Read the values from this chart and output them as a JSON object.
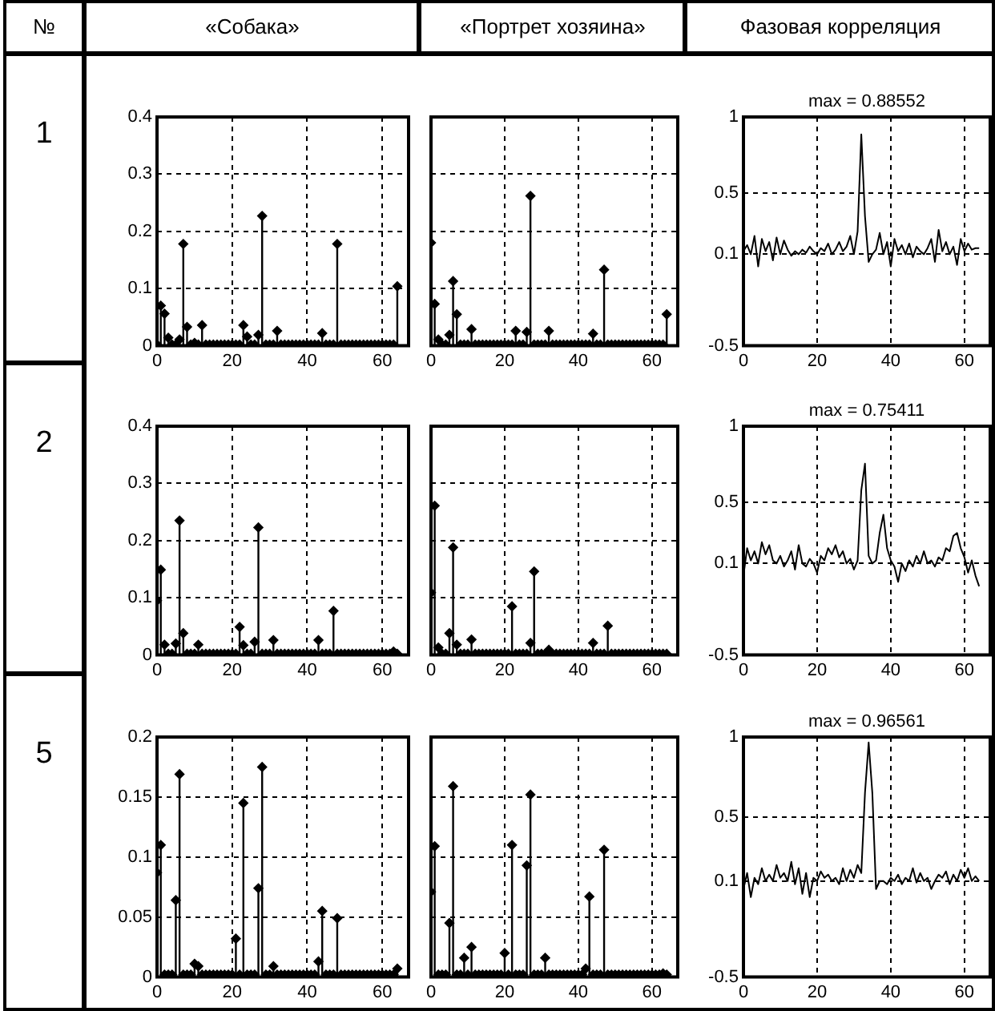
{
  "chart_data": [
    {
      "type": "other",
      "title": "№",
      "annotations": [
        "1",
        "2",
        "5"
      ]
    },
    {
      "type": "lollipop",
      "title": "«Собака»",
      "color": "#000000",
      "marker": "diamond",
      "grid": true,
      "xlim": [
        0,
        67
      ],
      "xticks": [
        0,
        20,
        40,
        60
      ],
      "ylim": [
        0,
        0.4
      ],
      "yticks": [
        0,
        0.1,
        0.2,
        0.3,
        0.4
      ],
      "x": [
        0,
        1,
        2,
        3,
        4,
        5,
        6,
        7,
        8,
        9,
        10,
        11,
        12,
        13,
        14,
        15,
        16,
        17,
        18,
        19,
        20,
        21,
        22,
        23,
        24,
        25,
        26,
        27,
        28,
        29,
        30,
        31,
        32,
        33,
        34,
        35,
        36,
        37,
        38,
        39,
        40,
        41,
        42,
        43,
        44,
        45,
        46,
        47,
        48,
        49,
        50,
        51,
        52,
        53,
        54,
        55,
        56,
        57,
        58,
        59,
        60,
        61,
        62,
        63,
        64
      ],
      "values": [
        0.002,
        0.07,
        0.056,
        0.014,
        0.002,
        0.002,
        0.011,
        0.178,
        0.033,
        0.002,
        0.005,
        0.002,
        0.036,
        0.002,
        0.002,
        0.002,
        0.002,
        0.002,
        0.002,
        0.002,
        0.002,
        0.002,
        0.002,
        0.036,
        0.016,
        0.002,
        0.002,
        0.019,
        0.227,
        0.002,
        0.002,
        0.002,
        0.026,
        0.002,
        0.002,
        0.002,
        0.002,
        0.002,
        0.002,
        0.002,
        0.002,
        0.002,
        0.002,
        0.002,
        0.022,
        0.002,
        0.002,
        0.002,
        0.178,
        0.002,
        0.002,
        0.002,
        0.002,
        0.002,
        0.002,
        0.002,
        0.002,
        0.002,
        0.002,
        0.002,
        0.002,
        0.002,
        0.002,
        0.002,
        0.104
      ]
    },
    {
      "type": "lollipop",
      "title": "«Портрет хозяина»",
      "color": "#000000",
      "marker": "diamond",
      "grid": true,
      "tick_labels": "x",
      "xlim": [
        0,
        67
      ],
      "xticks": [
        0,
        20,
        40,
        60
      ],
      "ylim": [
        0,
        0.4
      ],
      "yticks": [
        0,
        0.1,
        0.2,
        0.3,
        0.4
      ],
      "x": [
        0,
        1,
        2,
        3,
        4,
        5,
        6,
        7,
        8,
        9,
        10,
        11,
        12,
        13,
        14,
        15,
        16,
        17,
        18,
        19,
        20,
        21,
        22,
        23,
        24,
        25,
        26,
        27,
        28,
        29,
        30,
        31,
        32,
        33,
        34,
        35,
        36,
        37,
        38,
        39,
        40,
        41,
        42,
        43,
        44,
        45,
        46,
        47,
        48,
        49,
        50,
        51,
        52,
        53,
        54,
        55,
        56,
        57,
        58,
        59,
        60,
        61,
        62,
        63,
        64
      ],
      "values": [
        0.18,
        0.073,
        0.011,
        0.002,
        0.002,
        0.019,
        0.113,
        0.055,
        0.002,
        0.002,
        0.002,
        0.029,
        0.002,
        0.002,
        0.002,
        0.002,
        0.002,
        0.002,
        0.002,
        0.002,
        0.002,
        0.002,
        0.002,
        0.026,
        0.002,
        0.002,
        0.024,
        0.262,
        0.002,
        0.002,
        0.002,
        0.002,
        0.026,
        0.002,
        0.002,
        0.002,
        0.002,
        0.002,
        0.002,
        0.002,
        0.002,
        0.002,
        0.002,
        0.002,
        0.021,
        0.002,
        0.002,
        0.133,
        0.002,
        0.002,
        0.002,
        0.002,
        0.002,
        0.002,
        0.002,
        0.002,
        0.002,
        0.002,
        0.002,
        0.002,
        0.002,
        0.002,
        0.002,
        0.002,
        0.055
      ]
    },
    {
      "type": "line",
      "title": "Фазовая корреляция",
      "annotations": [
        "max = 0.88552"
      ],
      "color": "#000000",
      "grid": true,
      "xlim": [
        0,
        67
      ],
      "xticks": [
        0,
        20,
        40,
        60
      ],
      "ylim": [
        -0.5,
        1
      ],
      "yticks": [
        -0.5,
        0.1,
        0.5,
        1
      ],
      "x": [
        0,
        1,
        2,
        3,
        4,
        5,
        6,
        7,
        8,
        9,
        10,
        11,
        12,
        13,
        14,
        15,
        16,
        17,
        18,
        19,
        20,
        21,
        22,
        23,
        24,
        25,
        26,
        27,
        28,
        29,
        30,
        31,
        32,
        33,
        34,
        35,
        36,
        37,
        38,
        39,
        40,
        41,
        42,
        43,
        44,
        45,
        46,
        47,
        48,
        49,
        50,
        51,
        52,
        53,
        54,
        55,
        56,
        57,
        58,
        59,
        60,
        61,
        62,
        63,
        64
      ],
      "values": [
        0.12,
        0.16,
        0.1,
        0.22,
        0.02,
        0.2,
        0.12,
        0.18,
        0.06,
        0.21,
        0.1,
        0.19,
        0.13,
        0.09,
        0.12,
        0.1,
        0.13,
        0.11,
        0.15,
        0.12,
        0.1,
        0.14,
        0.12,
        0.17,
        0.1,
        0.13,
        0.18,
        0.12,
        0.15,
        0.22,
        0.1,
        0.25,
        0.88552,
        0.35,
        0.05,
        0.1,
        0.13,
        0.24,
        0.1,
        0.18,
        0.02,
        0.2,
        0.12,
        0.16,
        0.1,
        0.17,
        0.08,
        0.15,
        0.12,
        0.1,
        0.14,
        0.2,
        0.05,
        0.26,
        0.12,
        0.18,
        0.1,
        0.15,
        0.03,
        0.2,
        0.12,
        0.17,
        0.13,
        0.14,
        0.14
      ]
    },
    {
      "type": "lollipop",
      "color": "#000000",
      "marker": "diamond",
      "grid": true,
      "xlim": [
        0,
        67
      ],
      "xticks": [
        0,
        20,
        40,
        60
      ],
      "ylim": [
        0,
        0.4
      ],
      "yticks": [
        0,
        0.1,
        0.2,
        0.3,
        0.4
      ],
      "x": [
        0,
        1,
        2,
        3,
        4,
        5,
        6,
        7,
        8,
        9,
        10,
        11,
        12,
        13,
        14,
        15,
        16,
        17,
        18,
        19,
        20,
        21,
        22,
        23,
        24,
        25,
        26,
        27,
        28,
        29,
        30,
        31,
        32,
        33,
        34,
        35,
        36,
        37,
        38,
        39,
        40,
        41,
        42,
        43,
        44,
        45,
        46,
        47,
        48,
        49,
        50,
        51,
        52,
        53,
        54,
        55,
        56,
        57,
        58,
        59,
        60,
        61,
        62,
        63,
        64
      ],
      "values": [
        0.095,
        0.149,
        0.018,
        0.002,
        0.002,
        0.02,
        0.235,
        0.038,
        0.002,
        0.002,
        0.002,
        0.018,
        0.002,
        0.002,
        0.002,
        0.002,
        0.002,
        0.002,
        0.002,
        0.002,
        0.002,
        0.002,
        0.049,
        0.017,
        0.002,
        0.002,
        0.023,
        0.223,
        0.002,
        0.002,
        0.002,
        0.026,
        0.002,
        0.002,
        0.002,
        0.002,
        0.002,
        0.002,
        0.002,
        0.002,
        0.002,
        0.002,
        0.002,
        0.026,
        0.002,
        0.002,
        0.002,
        0.077,
        0.002,
        0.002,
        0.002,
        0.002,
        0.002,
        0.002,
        0.002,
        0.002,
        0.002,
        0.002,
        0.002,
        0.002,
        0.002,
        0.002,
        0.002,
        0.006,
        0.002
      ]
    },
    {
      "type": "lollipop",
      "color": "#000000",
      "marker": "diamond",
      "grid": true,
      "tick_labels": "x",
      "xlim": [
        0,
        67
      ],
      "xticks": [
        0,
        20,
        40,
        60
      ],
      "ylim": [
        0,
        0.4
      ],
      "yticks": [
        0,
        0.1,
        0.2,
        0.3,
        0.4
      ],
      "x": [
        0,
        1,
        2,
        3,
        4,
        5,
        6,
        7,
        8,
        9,
        10,
        11,
        12,
        13,
        14,
        15,
        16,
        17,
        18,
        19,
        20,
        21,
        22,
        23,
        24,
        25,
        26,
        27,
        28,
        29,
        30,
        31,
        32,
        33,
        34,
        35,
        36,
        37,
        38,
        39,
        40,
        41,
        42,
        43,
        44,
        45,
        46,
        47,
        48,
        49,
        50,
        51,
        52,
        53,
        54,
        55,
        56,
        57,
        58,
        59,
        60,
        61,
        62,
        63,
        64
      ],
      "values": [
        0.109,
        0.261,
        0.013,
        0.002,
        0.002,
        0.038,
        0.188,
        0.018,
        0.002,
        0.002,
        0.002,
        0.027,
        0.002,
        0.002,
        0.002,
        0.002,
        0.002,
        0.002,
        0.002,
        0.002,
        0.002,
        0.002,
        0.085,
        0.002,
        0.002,
        0.002,
        0.002,
        0.021,
        0.146,
        0.002,
        0.002,
        0.002,
        0.009,
        0.002,
        0.002,
        0.002,
        0.002,
        0.002,
        0.002,
        0.002,
        0.002,
        0.002,
        0.002,
        0.002,
        0.021,
        0.002,
        0.002,
        0.002,
        0.051,
        0.002,
        0.002,
        0.002,
        0.002,
        0.002,
        0.002,
        0.002,
        0.002,
        0.002,
        0.002,
        0.002,
        0.002,
        0.002,
        0.002,
        0.002,
        0.002
      ]
    },
    {
      "type": "line",
      "annotations": [
        "max = 0.75411"
      ],
      "color": "#000000",
      "grid": true,
      "xlim": [
        0,
        67
      ],
      "xticks": [
        0,
        20,
        40,
        60
      ],
      "ylim": [
        -0.5,
        1
      ],
      "yticks": [
        -0.5,
        0.1,
        0.5,
        1
      ],
      "x": [
        0,
        1,
        2,
        3,
        4,
        5,
        6,
        7,
        8,
        9,
        10,
        11,
        12,
        13,
        14,
        15,
        16,
        17,
        18,
        19,
        20,
        21,
        22,
        23,
        24,
        25,
        26,
        27,
        28,
        29,
        30,
        31,
        32,
        33,
        34,
        35,
        36,
        37,
        38,
        39,
        40,
        41,
        42,
        43,
        44,
        45,
        46,
        47,
        48,
        49,
        50,
        51,
        52,
        53,
        54,
        55,
        56,
        57,
        58,
        59,
        60,
        61,
        62,
        63,
        64
      ],
      "values": [
        0.02,
        0.2,
        0.12,
        0.18,
        0.1,
        0.24,
        0.16,
        0.22,
        0.12,
        0.1,
        0.15,
        0.08,
        0.12,
        0.18,
        0.06,
        0.22,
        0.1,
        0.08,
        0.13,
        0.1,
        0.04,
        0.15,
        0.12,
        0.2,
        0.16,
        0.22,
        0.14,
        0.18,
        0.1,
        0.13,
        0.06,
        0.12,
        0.58,
        0.75411,
        0.15,
        0.1,
        0.12,
        0.3,
        0.42,
        0.2,
        0.12,
        0.08,
        -0.02,
        0.1,
        0.05,
        0.12,
        0.08,
        0.15,
        0.1,
        0.18,
        0.1,
        0.12,
        0.08,
        0.14,
        0.12,
        0.2,
        0.18,
        0.28,
        0.3,
        0.2,
        0.14,
        0.04,
        0.12,
        0.02,
        -0.05
      ]
    },
    {
      "type": "lollipop",
      "color": "#000000",
      "marker": "diamond",
      "grid": true,
      "xlim": [
        0,
        67
      ],
      "xticks": [
        0,
        20,
        40,
        60
      ],
      "ylim": [
        0,
        0.2
      ],
      "yticks": [
        0,
        0.05,
        0.1,
        0.15,
        0.2
      ],
      "x": [
        0,
        1,
        2,
        3,
        4,
        5,
        6,
        7,
        8,
        9,
        10,
        11,
        12,
        13,
        14,
        15,
        16,
        17,
        18,
        19,
        20,
        21,
        22,
        23,
        24,
        25,
        26,
        27,
        28,
        29,
        30,
        31,
        32,
        33,
        34,
        35,
        36,
        37,
        38,
        39,
        40,
        41,
        42,
        43,
        44,
        45,
        46,
        47,
        48,
        49,
        50,
        51,
        52,
        53,
        54,
        55,
        56,
        57,
        58,
        59,
        60,
        61,
        62,
        63,
        64
      ],
      "values": [
        0.087,
        0.11,
        0.002,
        0.002,
        0.002,
        0.064,
        0.169,
        0.002,
        0.002,
        0.002,
        0.011,
        0.009,
        0.002,
        0.002,
        0.002,
        0.002,
        0.002,
        0.002,
        0.002,
        0.002,
        0.002,
        0.032,
        0.002,
        0.145,
        0.002,
        0.002,
        0.002,
        0.074,
        0.175,
        0.002,
        0.002,
        0.009,
        0.002,
        0.002,
        0.002,
        0.002,
        0.002,
        0.002,
        0.002,
        0.002,
        0.002,
        0.002,
        0.002,
        0.013,
        0.055,
        0.002,
        0.002,
        0.002,
        0.049,
        0.002,
        0.002,
        0.002,
        0.002,
        0.002,
        0.002,
        0.002,
        0.002,
        0.002,
        0.002,
        0.002,
        0.002,
        0.002,
        0.002,
        0.002,
        0.007
      ]
    },
    {
      "type": "lollipop",
      "color": "#000000",
      "marker": "diamond",
      "grid": true,
      "tick_labels": "x",
      "xlim": [
        0,
        67
      ],
      "xticks": [
        0,
        20,
        40,
        60
      ],
      "ylim": [
        0,
        0.2
      ],
      "yticks": [
        0,
        0.05,
        0.1,
        0.15,
        0.2
      ],
      "x": [
        0,
        1,
        2,
        3,
        4,
        5,
        6,
        7,
        8,
        9,
        10,
        11,
        12,
        13,
        14,
        15,
        16,
        17,
        18,
        19,
        20,
        21,
        22,
        23,
        24,
        25,
        26,
        27,
        28,
        29,
        30,
        31,
        32,
        33,
        34,
        35,
        36,
        37,
        38,
        39,
        40,
        41,
        42,
        43,
        44,
        45,
        46,
        47,
        48,
        49,
        50,
        51,
        52,
        53,
        54,
        55,
        56,
        57,
        58,
        59,
        60,
        61,
        62,
        63,
        64
      ],
      "values": [
        0.071,
        0.109,
        0.002,
        0.002,
        0.002,
        0.045,
        0.159,
        0.002,
        0.002,
        0.016,
        0.002,
        0.025,
        0.002,
        0.002,
        0.002,
        0.002,
        0.002,
        0.002,
        0.002,
        0.002,
        0.02,
        0.002,
        0.11,
        0.002,
        0.002,
        0.002,
        0.093,
        0.152,
        0.002,
        0.002,
        0.002,
        0.016,
        0.002,
        0.002,
        0.002,
        0.002,
        0.002,
        0.002,
        0.002,
        0.002,
        0.002,
        0.002,
        0.007,
        0.067,
        0.002,
        0.002,
        0.002,
        0.106,
        0.002,
        0.002,
        0.002,
        0.002,
        0.002,
        0.002,
        0.002,
        0.002,
        0.002,
        0.002,
        0.002,
        0.002,
        0.002,
        0.002,
        0.002,
        0.003,
        0.002
      ]
    },
    {
      "type": "line",
      "annotations": [
        "max = 0.96561"
      ],
      "color": "#000000",
      "grid": true,
      "xlim": [
        0,
        67
      ],
      "xticks": [
        0,
        20,
        40,
        60
      ],
      "ylim": [
        -0.5,
        1
      ],
      "yticks": [
        -0.5,
        0.1,
        0.5,
        1
      ],
      "x": [
        0,
        1,
        2,
        3,
        4,
        5,
        6,
        7,
        8,
        9,
        10,
        11,
        12,
        13,
        14,
        15,
        16,
        17,
        18,
        19,
        20,
        21,
        22,
        23,
        24,
        25,
        26,
        27,
        28,
        29,
        30,
        31,
        32,
        33,
        34,
        35,
        36,
        37,
        38,
        39,
        40,
        41,
        42,
        43,
        44,
        45,
        46,
        47,
        48,
        49,
        50,
        51,
        52,
        53,
        54,
        55,
        56,
        57,
        58,
        59,
        60,
        61,
        62,
        63,
        64
      ],
      "values": [
        0.05,
        0.15,
        0.0,
        0.12,
        0.08,
        0.18,
        0.1,
        0.14,
        0.1,
        0.2,
        0.12,
        0.15,
        0.1,
        0.22,
        0.08,
        0.18,
        0.02,
        0.15,
        0.0,
        0.12,
        0.1,
        0.16,
        0.12,
        0.14,
        0.1,
        0.12,
        0.08,
        0.18,
        0.1,
        0.17,
        0.12,
        0.2,
        0.15,
        0.65,
        0.96561,
        0.65,
        0.05,
        0.1,
        0.1,
        0.08,
        0.12,
        0.1,
        0.14,
        0.08,
        0.12,
        0.1,
        0.18,
        0.09,
        0.15,
        0.1,
        0.12,
        0.05,
        0.1,
        0.14,
        0.12,
        0.16,
        0.08,
        0.14,
        0.1,
        0.17,
        0.12,
        0.18,
        0.1,
        0.13,
        0.1
      ]
    }
  ]
}
